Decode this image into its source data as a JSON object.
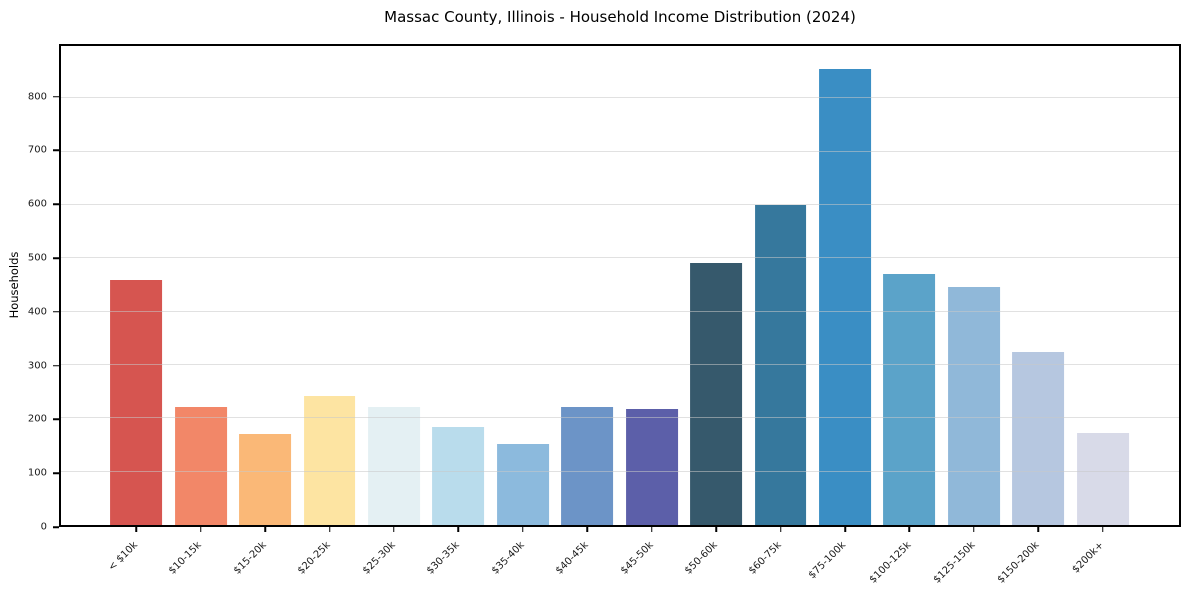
{
  "chart_data": {
    "type": "bar",
    "title": "Massac County, Illinois - Household Income Distribution (2024)",
    "xlabel": "",
    "ylabel": "Households",
    "categories": [
      "< $10k",
      "$10-15k",
      "$15-20k",
      "$20-25k",
      "$25-30k",
      "$30-35k",
      "$35-40k",
      "$40-45k",
      "$45-50k",
      "$50-60k",
      "$60-75k",
      "$75-100k",
      "$100-125k",
      "$125-150k",
      "$150-200k",
      "$200k+"
    ],
    "values": [
      460,
      222,
      170,
      241,
      222,
      183,
      151,
      222,
      218,
      492,
      600,
      855,
      470,
      446,
      324,
      173
    ],
    "bar_colors": [
      "#d65550",
      "#f28768",
      "#fab877",
      "#fde4a2",
      "#e4f0f3",
      "#b9dcec",
      "#8cbadd",
      "#6c94c7",
      "#5c5fa9",
      "#36596c",
      "#36789d",
      "#3a8ec4",
      "#5ba3c9",
      "#90b8d9",
      "#b6c7e0",
      "#d8dae8"
    ],
    "ylim": [
      0,
      898
    ],
    "yticks": [
      0,
      100,
      200,
      300,
      400,
      500,
      600,
      700,
      800
    ],
    "grid": true,
    "grid_axis": "y",
    "legend_position": "none",
    "x_tick_rotation_deg": 45,
    "axis_color": "#000000",
    "background_color": "#ffffff"
  }
}
